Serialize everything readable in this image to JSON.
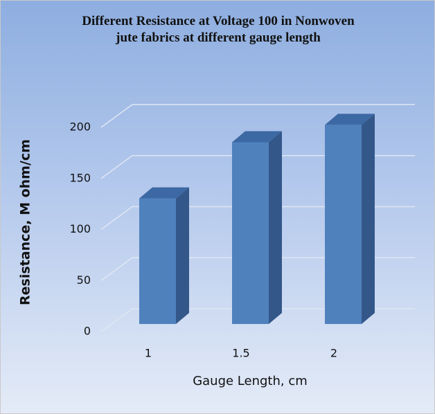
{
  "chart_data": {
    "type": "bar3d",
    "title": "Different Resistance at Voltage 100 in Nonwoven jute fabrics at different gauge length",
    "x_label": "Gauge Length, cm",
    "y_label": "Resistance, M ohm/cm",
    "categories": [
      "1",
      "1.5",
      "2"
    ],
    "values": [
      123,
      178,
      195
    ],
    "color": "#4f81bd",
    "ylim": [
      0,
      200
    ],
    "yticks": [
      0,
      50,
      100,
      150,
      200
    ],
    "grid": true
  }
}
